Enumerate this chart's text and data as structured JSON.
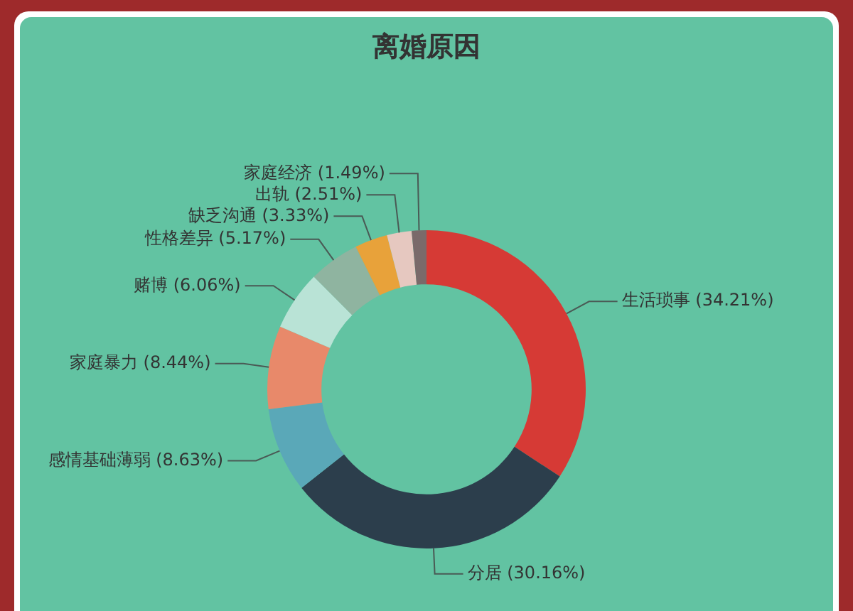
{
  "chart_data": {
    "type": "donut",
    "title": "离婚原因",
    "categories": [
      "生活琐事",
      "分居",
      "感情基础薄弱",
      "家庭暴力",
      "赌博",
      "性格差异",
      "缺乏沟通",
      "出轨",
      "家庭经济"
    ],
    "values": [
      34.21,
      30.16,
      8.63,
      8.44,
      6.06,
      5.17,
      3.33,
      2.51,
      1.49
    ],
    "colors": [
      "#d63a35",
      "#2c3e4c",
      "#5aa8b8",
      "#e8896a",
      "#b9e3d6",
      "#8fb4a0",
      "#e8a23a",
      "#e6c8c0",
      "#7a6a6a"
    ],
    "value_labels": [
      "(34.21%)",
      "(30.16%)",
      "(8.63%)",
      "(8.44%)",
      "(6.06%)",
      "(5.17%)",
      "(3.33%)",
      "(2.51%)",
      "(1.49%)"
    ],
    "legend": false
  }
}
